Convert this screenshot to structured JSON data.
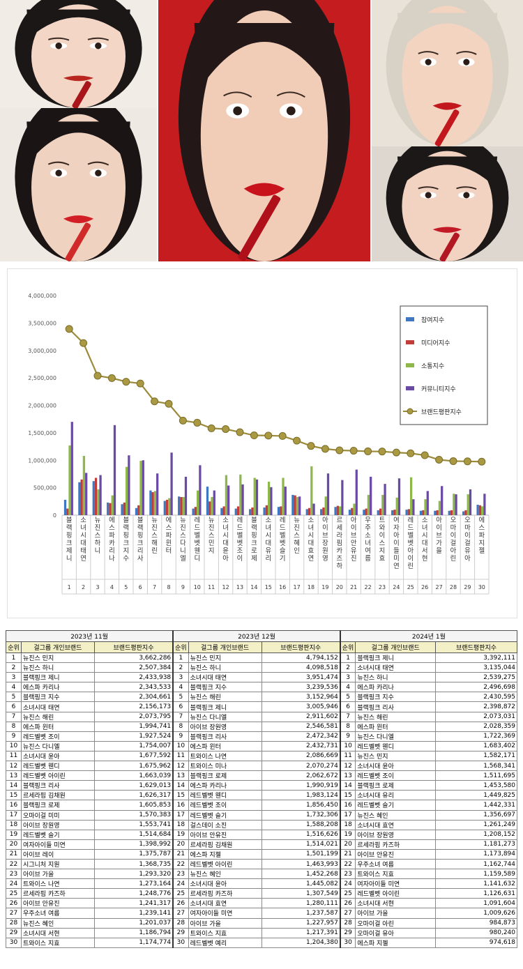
{
  "photos": [
    {
      "id": "p1",
      "bg": "#f1ece6",
      "skin": "#f3d6c6",
      "hair": "#1b1716",
      "lip": "#b8261f",
      "prop": "#a8151a"
    },
    {
      "id": "p2",
      "bg": "#efe9e4",
      "skin": "#f0d2c1",
      "hair": "#1a1414",
      "lip": "#d21f25",
      "prop": "#d02a2a"
    },
    {
      "id": "p3",
      "bg": "#c41c1f",
      "skin": "#f1ccb6",
      "hair": "#231717",
      "lip": "#c8131c",
      "prop": "#b0101a"
    },
    {
      "id": "p4",
      "bg": "#e9e2d9",
      "skin": "#f3d4c0",
      "hair": "#d8d2c6",
      "lip": "#c2171d",
      "prop": "#c2171d"
    },
    {
      "id": "p5",
      "bg": "#ded7d0",
      "skin": "#f2d3c2",
      "hair": "#1c1817",
      "lip": "#c31a28",
      "prop": "#b21822"
    }
  ],
  "chart_data": {
    "type": "bar",
    "title": "",
    "ylim": [
      0,
      4000000
    ],
    "yticks": [
      "4,000,000",
      "3,500,000",
      "3,000,000",
      "2,500,000",
      "2,000,000",
      "1,500,000",
      "1,000,000",
      "500,000",
      "0"
    ],
    "categories": [
      "블랙핑크 제니",
      "소녀시대 태연",
      "뉴진스 하니",
      "에스파 카리나",
      "블랙핑크 지수",
      "블랙핑크 리사",
      "뉴진스 해린",
      "에스파 윈터",
      "뉴진스 다니엘",
      "레드벨벳 웬디",
      "뉴진스 민지",
      "소녀시대 윤아",
      "레드벨벳 조이",
      "블랙핑크 로제",
      "소녀시대 유리",
      "레드벨벳 슬기",
      "뉴진스 혜인",
      "소녀시대 효연",
      "아이브 장원영",
      "르세라핌 카즈하",
      "아이브 안유진",
      "우주소녀 여름",
      "트와이스 지효",
      "여자아이들 미연",
      "레드벨벳 아이린",
      "소녀시대 서현",
      "아이브 가을",
      "오마이걸 아린",
      "오마이걸 유아",
      "에스파 지젤"
    ],
    "rank_labels": [
      "1",
      "2",
      "3",
      "4",
      "5",
      "6",
      "7",
      "8",
      "9",
      "10",
      "11",
      "12",
      "13",
      "14",
      "15",
      "16",
      "17",
      "18",
      "19",
      "20",
      "21",
      "22",
      "23",
      "24",
      "25",
      "26",
      "27",
      "28",
      "29",
      "30"
    ],
    "series": [
      {
        "name": "참여지수",
        "color": "#3f78c2",
        "values": [
          280000,
          600000,
          620000,
          230000,
          200000,
          130000,
          450000,
          260000,
          340000,
          120000,
          520000,
          130000,
          120000,
          110000,
          140000,
          150000,
          370000,
          110000,
          110000,
          150000,
          100000,
          100000,
          90000,
          90000,
          100000,
          80000,
          80000,
          80000,
          70000,
          190000
        ]
      },
      {
        "name": "미디어지수",
        "color": "#c23d3a",
        "values": [
          120000,
          650000,
          680000,
          220000,
          230000,
          180000,
          420000,
          280000,
          330000,
          150000,
          250000,
          160000,
          160000,
          140000,
          180000,
          160000,
          360000,
          130000,
          140000,
          170000,
          130000,
          120000,
          120000,
          100000,
          110000,
          90000,
          90000,
          90000,
          90000,
          180000
        ]
      },
      {
        "name": "소통지수",
        "color": "#8fb84a",
        "values": [
          1270000,
          1080000,
          470000,
          360000,
          880000,
          990000,
          440000,
          310000,
          330000,
          450000,
          330000,
          730000,
          740000,
          680000,
          610000,
          680000,
          330000,
          890000,
          340000,
          160000,
          210000,
          370000,
          370000,
          320000,
          690000,
          290000,
          260000,
          390000,
          380000,
          160000
        ]
      },
      {
        "name": "커뮤니티지수",
        "color": "#6b4aa5",
        "values": [
          1700000,
          770000,
          730000,
          1640000,
          1090000,
          1000000,
          760000,
          1140000,
          700000,
          910000,
          450000,
          540000,
          560000,
          650000,
          510000,
          520000,
          340000,
          210000,
          760000,
          640000,
          830000,
          700000,
          570000,
          670000,
          290000,
          440000,
          530000,
          380000,
          470000,
          390000
        ]
      }
    ],
    "line": {
      "name": "브랜드평판지수",
      "color": "#9b8a3a",
      "values": [
        3392111,
        3135044,
        2539275,
        2496698,
        2430595,
        2398872,
        2073031,
        2028359,
        1722369,
        1683402,
        1582171,
        1568341,
        1511695,
        1453580,
        1449825,
        1442331,
        1356697,
        1261249,
        1208152,
        1181273,
        1173894,
        1162744,
        1159589,
        1141632,
        1126631,
        1091604,
        1009626,
        984873,
        980240,
        974618
      ]
    },
    "legend_position": "top-right",
    "grid": false
  },
  "tables": [
    {
      "month": "2023년 11월",
      "headers": [
        "순위",
        "걸그룹 개인브랜드",
        "브랜드평판지수"
      ],
      "rows": [
        [
          "1",
          "뉴진스 민지",
          "3,662,286"
        ],
        [
          "2",
          "뉴진스 하니",
          "2,507,384"
        ],
        [
          "3",
          "블랙핑크 제니",
          "2,433,938"
        ],
        [
          "4",
          "에스파 카리나",
          "2,343,533"
        ],
        [
          "5",
          "블랙핑크 지수",
          "2,304,661"
        ],
        [
          "6",
          "소녀시대 태연",
          "2,156,173"
        ],
        [
          "7",
          "뉴진스 해린",
          "2,073,795"
        ],
        [
          "8",
          "에스파 윈터",
          "1,994,741"
        ],
        [
          "9",
          "레드벨벳 조이",
          "1,927,524"
        ],
        [
          "10",
          "뉴진스 다니엘",
          "1,754,007"
        ],
        [
          "11",
          "소녀시대 윤아",
          "1,677,592"
        ],
        [
          "12",
          "레드벨벳 웬디",
          "1,675,962"
        ],
        [
          "13",
          "레드벨벳 아이린",
          "1,663,039"
        ],
        [
          "14",
          "블랙핑크 리사",
          "1,629,013"
        ],
        [
          "15",
          "르세라핌 김채원",
          "1,626,317"
        ],
        [
          "16",
          "블랙핑크 로제",
          "1,605,853"
        ],
        [
          "17",
          "오마이걸 미미",
          "1,570,383"
        ],
        [
          "18",
          "아이브 장원영",
          "1,553,741"
        ],
        [
          "19",
          "레드벨벳 슬기",
          "1,514,684"
        ],
        [
          "20",
          "여자아이들 미연",
          "1,398,992"
        ],
        [
          "21",
          "아이브 레이",
          "1,375,787"
        ],
        [
          "22",
          "시그니처 지원",
          "1,368,735"
        ],
        [
          "23",
          "아이브 가을",
          "1,293,320"
        ],
        [
          "24",
          "트와이스 나연",
          "1,273,164"
        ],
        [
          "25",
          "르세라핌 카즈하",
          "1,248,776"
        ],
        [
          "26",
          "아이브 안유진",
          "1,241,317"
        ],
        [
          "27",
          "우주소녀 여름",
          "1,239,141"
        ],
        [
          "28",
          "뉴진스 혜인",
          "1,201,037"
        ],
        [
          "29",
          "소녀시대 서현",
          "1,186,794"
        ],
        [
          "30",
          "트와이스 지효",
          "1,174,774"
        ]
      ]
    },
    {
      "month": "2023년 12월",
      "headers": [
        "순위",
        "걸그룹 개인브랜드",
        "브랜드평판지수"
      ],
      "rows": [
        [
          "1",
          "뉴진스 민지",
          "4,794,152"
        ],
        [
          "2",
          "뉴진스 하니",
          "4,098,518"
        ],
        [
          "3",
          "소녀시대 태연",
          "3,951,474"
        ],
        [
          "4",
          "블랙핑크 지수",
          "3,239,536"
        ],
        [
          "5",
          "뉴진스 해린",
          "3,152,964"
        ],
        [
          "6",
          "블랙핑크 제니",
          "3,005,946"
        ],
        [
          "7",
          "뉴진스 다니엘",
          "2,911,602"
        ],
        [
          "8",
          "아이브 장원영",
          "2,546,581"
        ],
        [
          "9",
          "블랙핑크 리사",
          "2,472,342"
        ],
        [
          "10",
          "에스파 윈터",
          "2,432,731"
        ],
        [
          "11",
          "트와이스 나연",
          "2,086,669"
        ],
        [
          "12",
          "트와이스 미나",
          "2,070,274"
        ],
        [
          "13",
          "블랙핑크 로제",
          "2,062,672"
        ],
        [
          "14",
          "에스파 카리나",
          "1,990,919"
        ],
        [
          "15",
          "레드벨벳 웬디",
          "1,983,124"
        ],
        [
          "16",
          "레드벨벳 조이",
          "1,856,450"
        ],
        [
          "17",
          "레드벨벳 슬기",
          "1,732,306"
        ],
        [
          "18",
          "걸스데이 소진",
          "1,588,208"
        ],
        [
          "19",
          "아이브 안유진",
          "1,516,626"
        ],
        [
          "20",
          "르세라핌 김채원",
          "1,514,021"
        ],
        [
          "21",
          "에스파 지젤",
          "1,501,199"
        ],
        [
          "22",
          "레드벨벳 아이린",
          "1,463,993"
        ],
        [
          "23",
          "뉴진스 혜인",
          "1,452,268"
        ],
        [
          "24",
          "소녀시대 윤아",
          "1,445,082"
        ],
        [
          "25",
          "르세라핌 카즈하",
          "1,307,549"
        ],
        [
          "26",
          "소녀시대 효연",
          "1,280,111"
        ],
        [
          "27",
          "여자아이들 미연",
          "1,237,587"
        ],
        [
          "28",
          "아이브 가을",
          "1,227,957"
        ],
        [
          "29",
          "트와이스 지효",
          "1,217,391"
        ],
        [
          "30",
          "레드벨벳 예리",
          "1,204,380"
        ]
      ]
    },
    {
      "month": "2024년 1월",
      "headers": [
        "순위",
        "걸그룹 개인브랜드",
        "브랜드평판지수"
      ],
      "rows": [
        [
          "1",
          "블랙핑크 제니",
          "3,392,111"
        ],
        [
          "2",
          "소녀시대 태연",
          "3,135,044"
        ],
        [
          "3",
          "뉴진스 하니",
          "2,539,275"
        ],
        [
          "4",
          "에스파 카리나",
          "2,496,698"
        ],
        [
          "5",
          "블랙핑크 지수",
          "2,430,595"
        ],
        [
          "6",
          "블랙핑크 리사",
          "2,398,872"
        ],
        [
          "7",
          "뉴진스 해린",
          "2,073,031"
        ],
        [
          "8",
          "에스파 윈터",
          "2,028,359"
        ],
        [
          "9",
          "뉴진스 다니엘",
          "1,722,369"
        ],
        [
          "10",
          "레드벨벳 웬디",
          "1,683,402"
        ],
        [
          "11",
          "뉴진스 민지",
          "1,582,171"
        ],
        [
          "12",
          "소녀시대 윤아",
          "1,568,341"
        ],
        [
          "13",
          "레드벨벳 조이",
          "1,511,695"
        ],
        [
          "14",
          "블랙핑크 로제",
          "1,453,580"
        ],
        [
          "15",
          "소녀시대 유리",
          "1,449,825"
        ],
        [
          "16",
          "레드벨벳 슬기",
          "1,442,331"
        ],
        [
          "17",
          "뉴진스 혜인",
          "1,356,697"
        ],
        [
          "18",
          "소녀시대 효연",
          "1,261,249"
        ],
        [
          "19",
          "아이브 장원영",
          "1,208,152"
        ],
        [
          "20",
          "르세라핌 카즈하",
          "1,181,273"
        ],
        [
          "21",
          "아이브 안유진",
          "1,173,894"
        ],
        [
          "22",
          "우주소녀 여름",
          "1,162,744"
        ],
        [
          "23",
          "트와이스 지효",
          "1,159,589"
        ],
        [
          "24",
          "여자아이들 미연",
          "1,141,632"
        ],
        [
          "25",
          "레드벨벳 아이린",
          "1,126,631"
        ],
        [
          "26",
          "소녀시대 서현",
          "1,091,604"
        ],
        [
          "27",
          "아이브 가을",
          "1,009,626"
        ],
        [
          "28",
          "오마이걸 아린",
          "984,873"
        ],
        [
          "29",
          "오마이걸 유아",
          "980,240"
        ],
        [
          "30",
          "에스파 지젤",
          "974,618"
        ]
      ]
    }
  ]
}
